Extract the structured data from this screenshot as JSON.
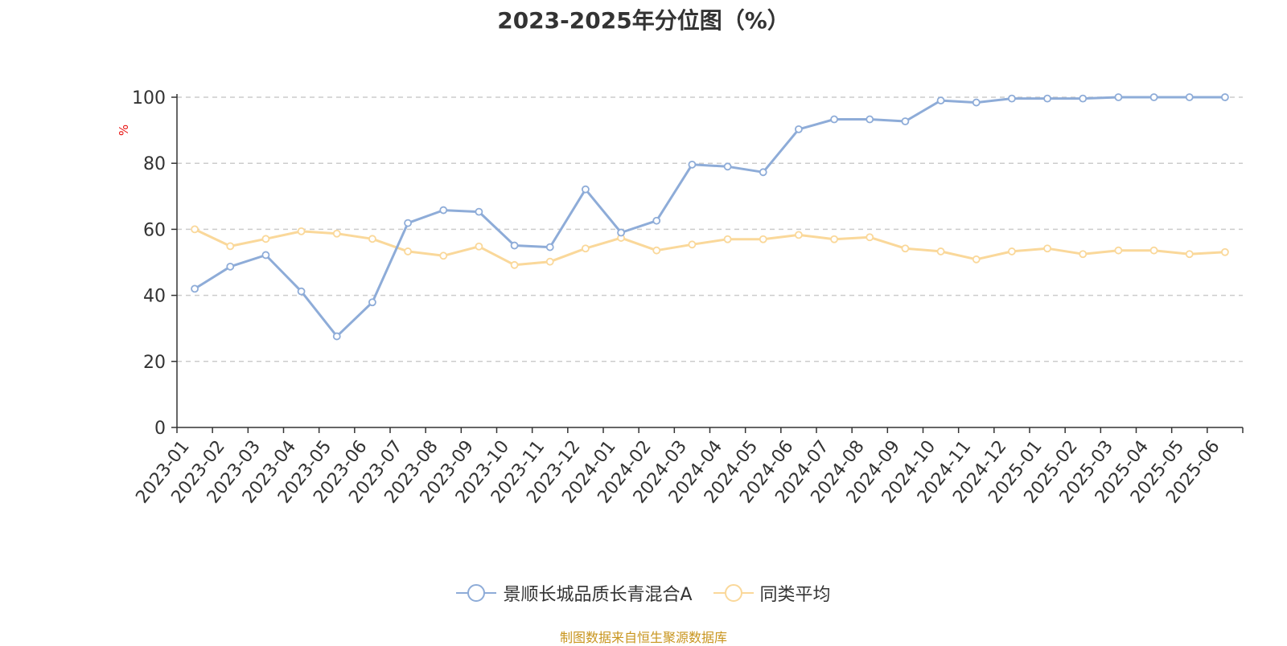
{
  "chart_data": {
    "type": "line",
    "title": "2023-2025年分位图（%）",
    "ylabel": "%",
    "xlabel": "",
    "ylim": [
      0,
      100
    ],
    "yticks": [
      0,
      20,
      40,
      60,
      80,
      100
    ],
    "grid": true,
    "legend_position": "bottom-center",
    "categories": [
      "2023-01",
      "2023-02",
      "2023-03",
      "2023-04",
      "2023-05",
      "2023-06",
      "2023-07",
      "2023-08",
      "2023-09",
      "2023-10",
      "2023-11",
      "2023-12",
      "2024-01",
      "2024-02",
      "2024-03",
      "2024-04",
      "2024-05",
      "2024-06",
      "2024-07",
      "2024-08",
      "2024-09",
      "2024-10",
      "2024-11",
      "2024-12",
      "2025-01",
      "2025-02",
      "2025-03",
      "2025-04",
      "2025-05",
      "2025-06"
    ],
    "series": [
      {
        "name": "景顺长城品质长青混合A",
        "color": "#8eacd8",
        "values": [
          42.0,
          48.7,
          52.2,
          41.2,
          27.6,
          37.9,
          61.9,
          65.8,
          65.3,
          55.1,
          54.6,
          72.1,
          59.0,
          62.6,
          79.6,
          79.0,
          77.3,
          90.3,
          93.3,
          93.3,
          92.7,
          99.0,
          98.4,
          99.6,
          99.6,
          99.6,
          100.0,
          100.0,
          100.0,
          100.0
        ]
      },
      {
        "name": "同类平均",
        "color": "#fad89a",
        "values": [
          60.0,
          54.9,
          57.1,
          59.4,
          58.7,
          57.1,
          53.3,
          52.0,
          54.8,
          49.2,
          50.2,
          54.2,
          57.4,
          53.6,
          55.4,
          57.0,
          57.0,
          58.3,
          57.0,
          57.6,
          54.2,
          53.3,
          50.9,
          53.3,
          54.2,
          52.5,
          53.6,
          53.6,
          52.5,
          53.1
        ]
      }
    ]
  },
  "source": "制图数据来自恒生聚源数据库",
  "colors": {
    "axis": "#333333",
    "grid": "#cccccc",
    "ylabel": "#e8110f",
    "source": "#c8951e"
  }
}
